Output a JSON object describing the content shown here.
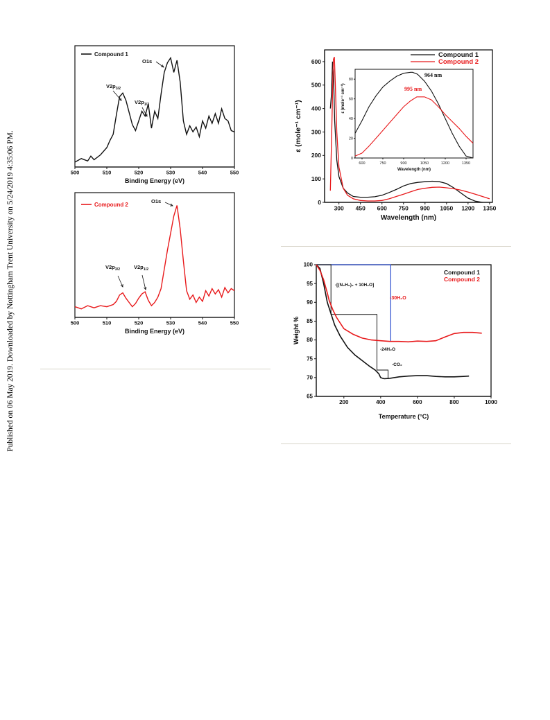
{
  "sidebar_note": "Published on 06 May 2019. Downloaded by Nottingham Trent University on 5/24/2019 4:35:06 PM.",
  "colors": {
    "compound1": "#111111",
    "compound2": "#e8191b",
    "blue": "#2e4fcf",
    "axis": "#111111",
    "rule": "#d7d4c8"
  },
  "chart_data": [
    {
      "type": "line",
      "xlabel": "Binding Energy (eV)",
      "ylabel": "",
      "xlim": [
        500,
        550
      ],
      "xticks": [
        500,
        510,
        520,
        530,
        540,
        550
      ],
      "legend": "top-left",
      "series": [
        {
          "name": "Compound 1",
          "x": [
            500,
            502,
            504,
            505,
            506,
            508,
            510,
            511,
            512,
            513,
            514,
            515,
            516,
            517,
            518,
            519,
            520,
            521,
            522,
            523,
            524,
            525,
            526,
            527,
            528,
            529,
            530,
            531,
            532,
            533,
            534,
            535,
            536,
            537,
            538,
            539,
            540,
            541,
            542,
            543,
            544,
            545,
            546,
            547,
            548,
            549,
            550
          ],
          "y": [
            4,
            7,
            5,
            9,
            6,
            10,
            16,
            22,
            27,
            43,
            58,
            61,
            55,
            45,
            35,
            30,
            38,
            46,
            42,
            52,
            32,
            46,
            40,
            60,
            78,
            86,
            90,
            78,
            88,
            70,
            38,
            27,
            34,
            29,
            33,
            25,
            38,
            32,
            42,
            36,
            44,
            36,
            48,
            40,
            38,
            30,
            29
          ]
        }
      ],
      "annotations": [
        {
          "text": "O1s",
          "x": 529.5,
          "y": 92
        },
        {
          "text": "V2p",
          "sub": "3/2",
          "x": 515,
          "y": 60
        },
        {
          "text": "V2p",
          "sub": "1/2",
          "x": 522,
          "y": 47
        }
      ]
    },
    {
      "type": "line",
      "xlabel": "Binding Energy (eV)",
      "ylabel": "",
      "xlim": [
        500,
        550
      ],
      "xticks": [
        500,
        510,
        520,
        530,
        540,
        550
      ],
      "legend": "top-left",
      "series": [
        {
          "name": "Compound 2",
          "x": [
            500,
            502,
            504,
            506,
            508,
            510,
            512,
            513,
            514,
            515,
            516,
            517,
            518,
            519,
            520,
            521,
            522,
            523,
            524,
            525,
            526,
            527,
            528,
            529,
            530,
            531,
            532,
            533,
            534,
            535,
            536,
            537,
            538,
            539,
            540,
            541,
            542,
            543,
            544,
            545,
            546,
            547,
            548,
            549,
            550
          ],
          "y": [
            5,
            3,
            6,
            4,
            6,
            5,
            7,
            10,
            16,
            18,
            13,
            9,
            5,
            8,
            13,
            17,
            19,
            11,
            6,
            9,
            14,
            22,
            40,
            58,
            74,
            90,
            100,
            78,
            48,
            20,
            12,
            16,
            9,
            14,
            10,
            20,
            15,
            22,
            17,
            21,
            14,
            23,
            18,
            22,
            20
          ]
        }
      ],
      "annotations": [
        {
          "text": "O1s",
          "x": 530,
          "y": 100
        },
        {
          "text": "V2p",
          "sub": "3/2",
          "x": 515,
          "y": 22
        },
        {
          "text": "V2p",
          "sub": "1/2",
          "x": 522,
          "y": 22
        }
      ]
    },
    {
      "type": "line",
      "xlabel": "Wavelength (nm)",
      "ylabel": "ε (mole⁻¹ cm⁻¹)",
      "xlim": [
        200,
        1370
      ],
      "ylim": [
        0,
        650
      ],
      "xticks": [
        300,
        450,
        600,
        750,
        900,
        1050,
        1200,
        1350
      ],
      "yticks": [
        0,
        100,
        200,
        300,
        400,
        500,
        600
      ],
      "legend": "top-right",
      "series": [
        {
          "name": "Compound 1",
          "x": [
            240,
            248,
            255,
            262,
            270,
            285,
            300,
            330,
            360,
            400,
            450,
            500,
            550,
            600,
            650,
            700,
            750,
            800,
            850,
            900,
            950,
            1000,
            1050,
            1100,
            1150,
            1200,
            1250,
            1300
          ],
          "y": [
            400,
            460,
            600,
            560,
            350,
            180,
            110,
            60,
            40,
            25,
            22,
            22,
            24,
            30,
            42,
            55,
            70,
            80,
            85,
            88,
            90,
            88,
            80,
            62,
            40,
            18,
            5,
            0
          ]
        },
        {
          "name": "Compound 2",
          "x": [
            240,
            250,
            258,
            262,
            268,
            275,
            285,
            300,
            330,
            360,
            400,
            450,
            500,
            550,
            600,
            650,
            700,
            750,
            800,
            850,
            900,
            950,
            1000,
            1050,
            1100,
            1150,
            1200,
            1250,
            1300,
            1350
          ],
          "y": [
            50,
            300,
            540,
            610,
            620,
            500,
            300,
            150,
            60,
            30,
            15,
            8,
            6,
            6,
            8,
            15,
            25,
            35,
            45,
            55,
            60,
            64,
            65,
            62,
            58,
            52,
            44,
            35,
            25,
            15
          ]
        }
      ]
    },
    {
      "type": "line",
      "xlabel": "Wavelength (nm)",
      "ylabel": "ε (mole⁻¹ cm⁻¹)",
      "xlim": [
        550,
        1400
      ],
      "ylim": [
        0,
        90
      ],
      "xticks": [
        600,
        750,
        900,
        1050,
        1200,
        1350
      ],
      "yticks": [
        0,
        20,
        40,
        60,
        80
      ],
      "series": [
        {
          "name": "Compound 1",
          "x": [
            550,
            600,
            650,
            700,
            750,
            800,
            850,
            900,
            950,
            964,
            1000,
            1050,
            1100,
            1150,
            1200,
            1250,
            1300,
            1350,
            1400
          ],
          "y": [
            25,
            38,
            52,
            63,
            72,
            78,
            83,
            86,
            87,
            87,
            85,
            78,
            68,
            55,
            40,
            25,
            12,
            2,
            0
          ]
        },
        {
          "name": "Compound 2",
          "x": [
            550,
            600,
            650,
            700,
            750,
            800,
            850,
            900,
            950,
            995,
            1050,
            1100,
            1150,
            1200,
            1250,
            1300,
            1350,
            1400
          ],
          "y": [
            2,
            5,
            12,
            20,
            28,
            36,
            44,
            52,
            58,
            62,
            62,
            59,
            52,
            44,
            37,
            30,
            22,
            15
          ]
        }
      ],
      "annotations": [
        {
          "text": "964 nm",
          "x": 964
        },
        {
          "text": "995 nm",
          "x": 995
        }
      ]
    },
    {
      "type": "line",
      "xlabel": "Temperature (°C)",
      "ylabel": "Weight %",
      "xlim": [
        50,
        1000
      ],
      "ylim": [
        65,
        100
      ],
      "xticks": [
        200,
        400,
        600,
        800,
        1000
      ],
      "yticks": [
        65,
        70,
        75,
        80,
        85,
        90,
        95,
        100
      ],
      "legend": "top-right",
      "series": [
        {
          "name": "Compound 1",
          "x": [
            50,
            70,
            90,
            110,
            130,
            150,
            180,
            220,
            260,
            300,
            340,
            370,
            390,
            400,
            410,
            420,
            450,
            500,
            550,
            600,
            650,
            700,
            750,
            800,
            850,
            880
          ],
          "y": [
            100,
            99,
            95,
            90,
            87,
            84,
            81,
            78,
            76,
            74.5,
            73,
            72,
            71,
            70,
            69.8,
            69.7,
            69.8,
            70.2,
            70.4,
            70.5,
            70.5,
            70.3,
            70.2,
            70.2,
            70.3,
            70.4
          ]
        },
        {
          "name": "Compound 2",
          "x": [
            50,
            70,
            90,
            110,
            120,
            140,
            160,
            200,
            250,
            300,
            350,
            400,
            450,
            500,
            550,
            600,
            650,
            700,
            750,
            800,
            850,
            900,
            950
          ],
          "y": [
            100,
            98.5,
            96,
            92.5,
            90.5,
            88,
            86,
            83,
            81.5,
            80.5,
            80,
            79.8,
            79.6,
            79.6,
            79.5,
            79.7,
            79.6,
            79.8,
            80.8,
            81.7,
            82,
            82,
            81.8
          ]
        }
      ],
      "steps": [
        {
          "name": "black-step",
          "x": [
            50,
            130,
            130,
            380,
            380,
            440,
            440
          ],
          "y": [
            100,
            100,
            86.8,
            86.8,
            72,
            72,
            69.7
          ]
        },
        {
          "name": "blue-step",
          "x": [
            50,
            455,
            455
          ],
          "y": [
            100,
            100,
            79.5
          ]
        }
      ],
      "annotations": [
        {
          "text": "-[(N₂H₅)₂ + 10H₂O]"
        },
        {
          "text": "-30H₂O"
        },
        {
          "text": "-24H₂O"
        },
        {
          "text": "-CO₂"
        }
      ]
    }
  ]
}
